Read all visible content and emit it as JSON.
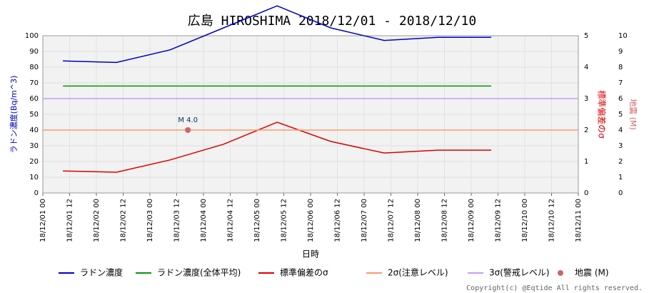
{
  "chart_data": {
    "type": "line",
    "title": "広島 HIROSHIMA 2018/12/01 - 2018/12/10",
    "xlabel": "日時",
    "ylabel": "ラドン濃度(Bq/m^3)",
    "y2label": "標準偏差のσ",
    "y3label": "地震 (M)",
    "copyright": "Copyright(c) @Eqtide All rights reserved.",
    "x": [
      "18/12/01 09",
      "18/12/02 09",
      "18/12/03 09",
      "18/12/04 09",
      "18/12/05 09",
      "18/12/06 09",
      "18/12/07 09",
      "18/12/08 09",
      "18/12/09 09"
    ],
    "xlim": [
      "18/12/01 00",
      "18/12/11 00"
    ],
    "xticks": [
      "18/12/01 00",
      "18/12/01 12",
      "18/12/02 00",
      "18/12/02 12",
      "18/12/03 00",
      "18/12/03 12",
      "18/12/04 00",
      "18/12/04 12",
      "18/12/05 00",
      "18/12/05 12",
      "18/12/06 00",
      "18/12/06 12",
      "18/12/07 00",
      "18/12/07 12",
      "18/12/08 00",
      "18/12/08 12",
      "18/12/09 00",
      "18/12/09 12",
      "18/12/10 00",
      "18/12/10 12",
      "18/12/11 00"
    ],
    "ylim": [
      0,
      100
    ],
    "yticks": [
      0,
      10,
      20,
      30,
      40,
      50,
      60,
      70,
      80,
      90,
      100
    ],
    "y2lim": [
      0,
      5
    ],
    "y2ticks": [
      0,
      1,
      2,
      3,
      4,
      5
    ],
    "y3lim": [
      0,
      10
    ],
    "y3ticks": [
      0,
      1,
      2,
      3,
      4,
      5,
      6,
      7,
      8,
      9,
      10
    ],
    "grid": true,
    "series": [
      {
        "name": "ラドン濃度",
        "color": "#0000cc",
        "values": [
          84,
          83,
          91,
          105,
          119,
          105,
          97,
          99,
          99
        ]
      },
      {
        "name": "ラドン濃度(全体平均)",
        "color": "#009900",
        "values": [
          68,
          68,
          68,
          68,
          68,
          68,
          68,
          68,
          68
        ]
      },
      {
        "name": "標準偏差のσ",
        "color": "#dd0000",
        "axis": "y2",
        "values": [
          0.7,
          0.66,
          1.05,
          1.55,
          2.25,
          1.64,
          1.27,
          1.36,
          1.36
        ]
      },
      {
        "name": "2σ(注意レベル)",
        "color": "#ff9966",
        "x": [
          "18/12/01 00",
          "18/12/11 00"
        ],
        "values": [
          40,
          40
        ]
      },
      {
        "name": "3σ(警戒レベル)",
        "color": "#cc99ff",
        "x": [
          "18/12/01 00",
          "18/12/11 00"
        ],
        "values": [
          60,
          60
        ]
      },
      {
        "name": "地震 (M)",
        "color": "#cc6666",
        "axis": "y3",
        "marker": "point",
        "x": [
          "18/12/03 17"
        ],
        "values": [
          4
        ],
        "value_labels": [
          "M 4.0"
        ]
      }
    ]
  }
}
